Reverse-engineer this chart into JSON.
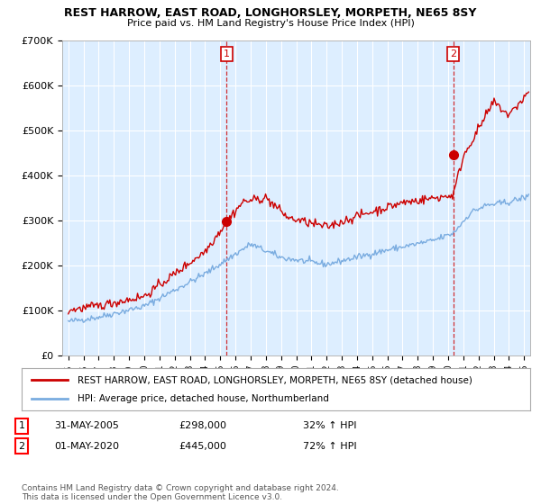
{
  "title": "REST HARROW, EAST ROAD, LONGHORSLEY, MORPETH, NE65 8SY",
  "subtitle": "Price paid vs. HM Land Registry's House Price Index (HPI)",
  "legend_line1": "REST HARROW, EAST ROAD, LONGHORSLEY, MORPETH, NE65 8SY (detached house)",
  "legend_line2": "HPI: Average price, detached house, Northumberland",
  "annotation1_label": "1",
  "annotation1_date": "31-MAY-2005",
  "annotation1_price": "£298,000",
  "annotation1_hpi": "32% ↑ HPI",
  "annotation2_label": "2",
  "annotation2_date": "01-MAY-2020",
  "annotation2_price": "£445,000",
  "annotation2_hpi": "72% ↑ HPI",
  "footer": "Contains HM Land Registry data © Crown copyright and database right 2024.\nThis data is licensed under the Open Government Licence v3.0.",
  "sale1_year": 2005.42,
  "sale1_price": 298000,
  "sale2_year": 2020.33,
  "sale2_price": 445000,
  "ylim": [
    0,
    700000
  ],
  "xlim_start": 1994.6,
  "xlim_end": 2025.4,
  "red_color": "#cc0000",
  "blue_color": "#7aace0",
  "vline_color": "#cc0000",
  "background_color": "#ffffff",
  "chart_bg_color": "#ddeeff",
  "grid_color": "#ffffff"
}
